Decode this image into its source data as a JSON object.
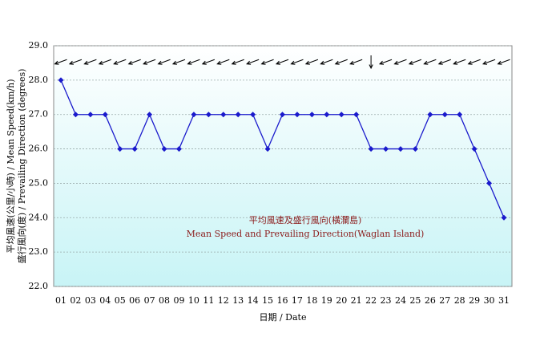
{
  "chart_data": {
    "type": "line",
    "y_label_lines": [
      "平均風速(公里/小時) / Mean Speed(km/h)",
      "盛行風向(度) / Prevailing Direction (degrees)"
    ],
    "x_label": "日期 / Date",
    "annotation_lines": [
      "平均風速及盛行風向(橫瀾島)",
      "Mean Speed and Prevailing Direction(Waglan Island)"
    ],
    "categories": [
      "01",
      "02",
      "03",
      "04",
      "05",
      "06",
      "07",
      "08",
      "09",
      "10",
      "11",
      "12",
      "13",
      "14",
      "15",
      "16",
      "17",
      "18",
      "19",
      "20",
      "21",
      "22",
      "23",
      "24",
      "25",
      "26",
      "27",
      "28",
      "29",
      "30",
      "31"
    ],
    "values": [
      28,
      27,
      27,
      27,
      26,
      26,
      27,
      26,
      26,
      27,
      27,
      27,
      27,
      27,
      26,
      27,
      27,
      27,
      27,
      27,
      27,
      26,
      26,
      26,
      26,
      27,
      27,
      27,
      26,
      25,
      24
    ],
    "directions": [
      70,
      70,
      70,
      70,
      70,
      70,
      70,
      70,
      70,
      70,
      70,
      70,
      70,
      70,
      70,
      70,
      70,
      70,
      70,
      70,
      70,
      360,
      70,
      70,
      70,
      70,
      70,
      70,
      70,
      70,
      70
    ],
    "color": "#1a1acc",
    "ylim": [
      22,
      29
    ],
    "yticks": [
      {
        "value": 22,
        "label": "22.0"
      },
      {
        "value": 23,
        "label": "23.0"
      },
      {
        "value": 24,
        "label": "24.0"
      },
      {
        "value": 25,
        "label": "25.0"
      },
      {
        "value": 26,
        "label": "26.0"
      },
      {
        "value": 27,
        "label": "27.0"
      },
      {
        "value": 28,
        "label": "28.0"
      },
      {
        "value": 29,
        "label": "29.0"
      }
    ],
    "grid": true
  }
}
